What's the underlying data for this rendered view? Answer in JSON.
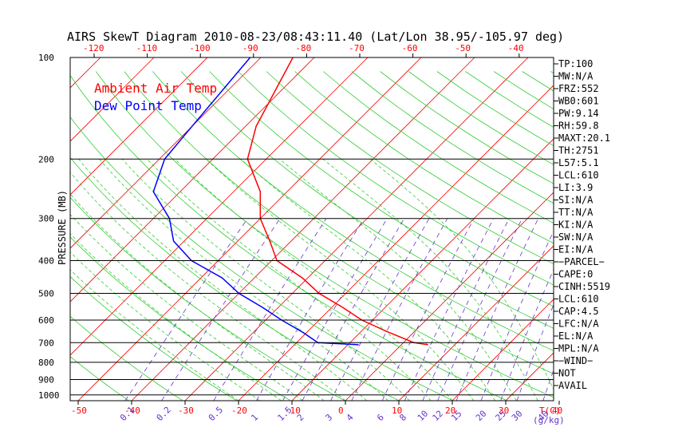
{
  "title": "AIRS SkewT Diagram 2010-08-23/08:43:11.40 (Lat/Lon 38.95/-105.97 deg)",
  "legend": [
    {
      "label": "Ambient Air Temp",
      "color": "#ff0000"
    },
    {
      "label": "Dew Point Temp",
      "color": "#0000ff"
    }
  ],
  "ylabel": "PRESSURE (MB)",
  "indices": [
    "TP:100",
    "MW:N/A",
    "FRZ:552",
    "WB0:601",
    "PW:9.14",
    "RH:59.8",
    "MAXT:20.1",
    "TH:2751",
    "L57:5.1",
    "LCL:610",
    "LI:3.9",
    "SI:N/A",
    "TT:N/A",
    "KI:N/A",
    "SW:N/A",
    "EI:N/A",
    "−PARCEL−",
    "CAPE:0",
    "CINH:5519",
    "LCL:610",
    "CAP:4.5",
    "LFC:N/A",
    "EL:N/A",
    "MPL:N/A",
    "−WIND−",
    "NOT",
    "AVAIL"
  ],
  "chart_data": {
    "type": "line",
    "title": "AIRS SkewT Diagram 2010-08-23/08:43:11.40 (Lat/Lon 38.95/-105.97 deg)",
    "ylabel": "PRESSURE (MB)",
    "xlabel": "T(C)",
    "pressure_ticks": [
      100,
      200,
      300,
      400,
      500,
      600,
      700,
      800,
      900,
      1000
    ],
    "bottom_temp_ticks": [
      -50,
      -40,
      -30,
      -20,
      -10,
      0,
      10,
      20,
      30,
      40
    ],
    "top_temp_ticks": [
      -120,
      -110,
      -100,
      -90,
      -80,
      -70,
      -60,
      -50,
      -40
    ],
    "mixing_ratio_ticks": [
      "0.1",
      "0.2",
      "0.5",
      "1",
      "1.5",
      "2",
      "3",
      "4",
      "6",
      "8",
      "10",
      "12",
      "15",
      "20",
      "25",
      "30",
      "40"
    ],
    "mixing_ratio_label": "(g/kg)",
    "ylim": [
      1000,
      100
    ],
    "series": [
      {
        "name": "Ambient Air Temp",
        "color": "#ff0000",
        "points": [
          [
            100,
            -74
          ],
          [
            160,
            -68
          ],
          [
            200,
            -63.5
          ],
          [
            250,
            -55
          ],
          [
            300,
            -50
          ],
          [
            350,
            -44
          ],
          [
            400,
            -39
          ],
          [
            450,
            -31
          ],
          [
            500,
            -25
          ],
          [
            550,
            -18
          ],
          [
            600,
            -12
          ],
          [
            650,
            -5
          ],
          [
            700,
            2
          ],
          [
            710,
            5
          ]
        ]
      },
      {
        "name": "Dew Point Temp",
        "color": "#0000ff",
        "points": [
          [
            100,
            -82
          ],
          [
            160,
            -80
          ],
          [
            200,
            -79
          ],
          [
            250,
            -75
          ],
          [
            300,
            -67
          ],
          [
            350,
            -62
          ],
          [
            400,
            -55
          ],
          [
            450,
            -46
          ],
          [
            500,
            -40
          ],
          [
            550,
            -33
          ],
          [
            600,
            -27
          ],
          [
            650,
            -21
          ],
          [
            700,
            -16
          ],
          [
            710,
            -8
          ]
        ]
      }
    ]
  }
}
